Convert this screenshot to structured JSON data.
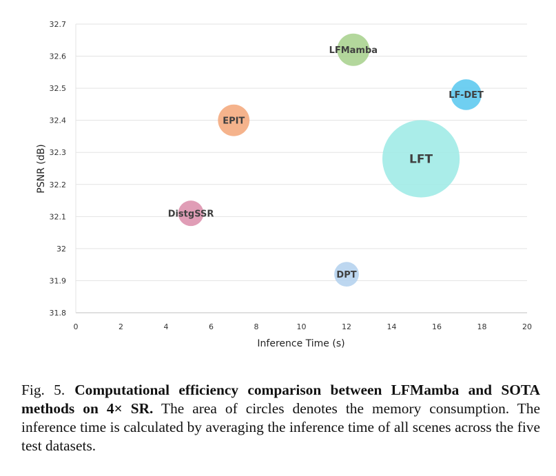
{
  "chart_data": {
    "type": "bubble",
    "xlabel": "Inference Time (s)",
    "ylabel": "PSNR (dB)",
    "xlim": [
      0,
      20
    ],
    "ylim": [
      31.8,
      32.7
    ],
    "xticks": [
      "0",
      "2",
      "4",
      "6",
      "8",
      "10",
      "12",
      "14",
      "16",
      "18",
      "20"
    ],
    "yticks": [
      "31.8",
      "31.9",
      "32",
      "32.1",
      "32.2",
      "32.3",
      "32.4",
      "32.5",
      "32.6",
      "32.7"
    ],
    "grid": "horizontal",
    "points": [
      {
        "name": "LFMamba",
        "x": 12.3,
        "y": 32.62,
        "size": 1,
        "color": "#a9d18e"
      },
      {
        "name": "LF-DET",
        "x": 17.3,
        "y": 32.48,
        "size": 0.9,
        "color": "#5bc8ef"
      },
      {
        "name": "EPIT",
        "x": 7.0,
        "y": 32.4,
        "size": 0.95,
        "color": "#f4a87c"
      },
      {
        "name": "LFT",
        "x": 15.3,
        "y": 32.28,
        "size": 5.7,
        "color": "#9eeae6"
      },
      {
        "name": "DistgSSR",
        "x": 5.1,
        "y": 32.11,
        "size": 0.62,
        "color": "#dc8fac"
      },
      {
        "name": "DPT",
        "x": 12.0,
        "y": 31.92,
        "size": 0.58,
        "color": "#b4d2ee"
      }
    ]
  },
  "caption": {
    "label": "Fig. 5.",
    "bold": "Computational efficiency comparison between LFMamba and SOTA methods on 4× SR.",
    "text": "The area of circles denotes the memory consumption. The inference time is calculated by averaging the inference time of all scenes across the five test datasets."
  }
}
